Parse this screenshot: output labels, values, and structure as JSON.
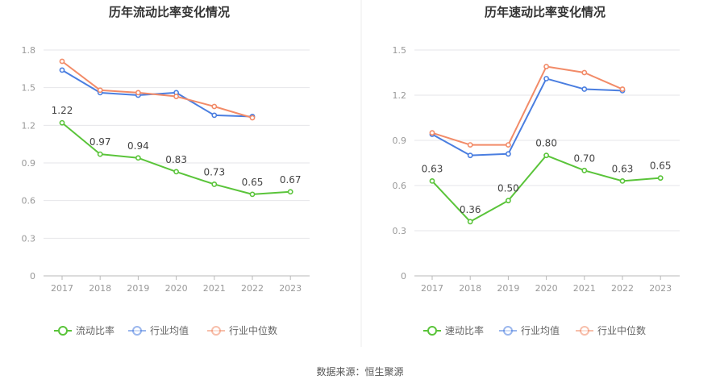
{
  "colors": {
    "company": "#5ac43a",
    "avg": "#4a7ee0",
    "median": "#f28b68",
    "grid": "#e6e6ea",
    "axis": "#b8b8b8",
    "divider": "#eeeeee"
  },
  "source": "数据来源：恒生聚源",
  "chart_data": [
    {
      "type": "line",
      "title": "历年流动比率变化情况",
      "x": [
        "2017",
        "2018",
        "2019",
        "2020",
        "2021",
        "2022",
        "2023"
      ],
      "ylim": [
        0,
        1.8
      ],
      "yticks": [
        "0",
        "0.3",
        "0.6",
        "0.9",
        "1.2",
        "1.5",
        "1.8"
      ],
      "grid": true,
      "legend_position": "bottom",
      "series": [
        {
          "name": "流动比率",
          "color": "#5ac43a",
          "labels": true,
          "values": [
            1.22,
            0.97,
            0.94,
            0.83,
            0.73,
            0.65,
            0.67
          ]
        },
        {
          "name": "行业均值",
          "color": "#4a7ee0",
          "labels": false,
          "values": [
            1.64,
            1.46,
            1.44,
            1.46,
            1.28,
            1.27,
            null
          ]
        },
        {
          "name": "行业中位数",
          "color": "#f28b68",
          "labels": false,
          "values": [
            1.71,
            1.48,
            1.46,
            1.43,
            1.35,
            1.26,
            null
          ]
        }
      ]
    },
    {
      "type": "line",
      "title": "历年速动比率变化情况",
      "x": [
        "2017",
        "2018",
        "2019",
        "2020",
        "2021",
        "2022",
        "2023"
      ],
      "ylim": [
        0,
        1.5
      ],
      "yticks": [
        "0",
        "0.3",
        "0.6",
        "0.9",
        "1.2",
        "1.5"
      ],
      "grid": true,
      "legend_position": "bottom",
      "series": [
        {
          "name": "速动比率",
          "color": "#5ac43a",
          "labels": true,
          "values": [
            0.63,
            0.36,
            0.5,
            0.8,
            0.7,
            0.63,
            0.65
          ]
        },
        {
          "name": "行业均值",
          "color": "#4a7ee0",
          "labels": false,
          "values": [
            0.94,
            0.8,
            0.81,
            1.31,
            1.24,
            1.23,
            null
          ]
        },
        {
          "name": "行业中位数",
          "color": "#f28b68",
          "labels": false,
          "values": [
            0.95,
            0.87,
            0.87,
            1.39,
            1.35,
            1.24,
            null
          ]
        }
      ]
    }
  ]
}
